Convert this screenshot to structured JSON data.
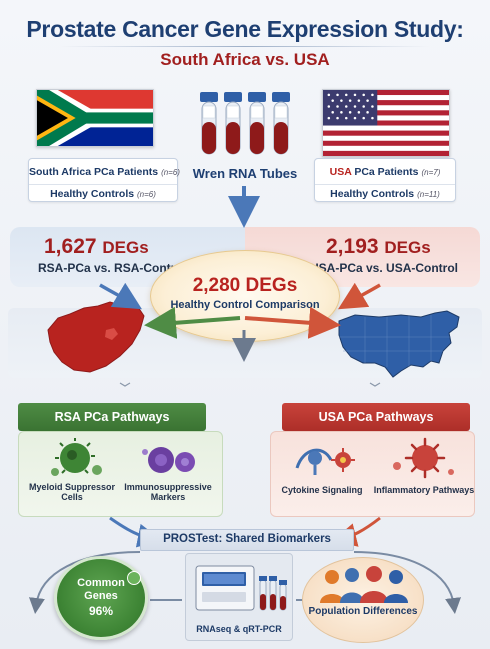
{
  "header": {
    "title": "Prostate Cancer Gene Expression Study:",
    "subtitle": "South Africa vs. USA"
  },
  "left_cohort": {
    "patients_label": "South Africa PCa Patients",
    "patients_n": "(n=6)",
    "controls_label": "Healthy Controls",
    "controls_n": "(n=6)"
  },
  "center_sample": {
    "label": "Wren RNA Tubes"
  },
  "right_cohort": {
    "country": "USA",
    "patients_label": "PCa Patients",
    "patients_n": "(n=7)",
    "controls_label": "Healthy Controls",
    "controls_n": "(n=11)"
  },
  "comparisons": {
    "rsa": {
      "count": "1,627",
      "unit": "DEGs",
      "label": "RSA-PCa vs. RSA-Control"
    },
    "usa": {
      "count": "2,193",
      "unit": "DEGs",
      "label": "USA-PCa vs. USA-Control"
    },
    "healthy": {
      "count": "2,280",
      "unit": "DEGs",
      "label": "Healthy Control Comparison"
    }
  },
  "pathways": {
    "rsa": {
      "title": "RSA PCa Pathways",
      "items": [
        "Myeloid Suppressor Cells",
        "Immunosuppressive Markers"
      ]
    },
    "usa": {
      "title": "USA PCa Pathways",
      "items": [
        "Cytokine Signaling",
        "Inflammatory Pathways"
      ]
    }
  },
  "shared": {
    "banner": "PROSTest: Shared Biomarkers",
    "common_line1": "Common",
    "common_line2": "Genes",
    "common_percent": "96%",
    "method": "RNAseq & qRT-PCR",
    "population": "Population Differences"
  },
  "colors": {
    "navy": "#1e3f72",
    "red": "#a11f1f",
    "green": "#3a7332",
    "rsa_panel": "#dce6f2",
    "usa_panel": "#f5d9d5"
  }
}
